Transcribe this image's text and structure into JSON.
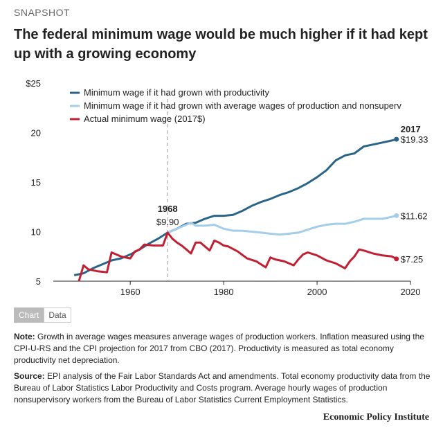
{
  "header": {
    "kicker": "SNAPSHOT",
    "title": "The federal minimum wage would be much higher if it had kept up with a growing economy"
  },
  "tabs": {
    "chart_label": "Chart",
    "data_label": "Data"
  },
  "notes": {
    "note_label": "Note:",
    "note_text": " Growth in average wages measures anverage wages of production workers. Inflation measured using the CPI-U-RS and the CPI projection for 2017 from CBO (2017). Productivity is measured as total economy productivity net depreciation.",
    "source_label": "Source:",
    "source_text": " EPI analysis of the Fair Labor Standards Act and amendments. Total economy productivity data from the Bureau of Labor Statistics Labor Productivity and Costs program. Average hourly wages of production nonsupervisory workers from the Bureau of Labor Statistics Current Employment Statistics."
  },
  "brand": "Economic Policy Institute",
  "chart_data": {
    "type": "line",
    "title": "The federal minimum wage would be much higher if it had kept up with a growing economy",
    "xlim": [
      1945,
      2020
    ],
    "ylim": [
      5,
      25
    ],
    "xticks": [
      1960,
      1980,
      2000,
      2020
    ],
    "yticks": [
      {
        "value": 5,
        "label": "5"
      },
      {
        "value": 10,
        "label": "10"
      },
      {
        "value": 15,
        "label": "15"
      },
      {
        "value": 20,
        "label": "20"
      },
      {
        "value": 25,
        "label": "$25"
      }
    ],
    "grid": false,
    "legend_position": "top-left",
    "reference_line": {
      "x": 1968,
      "label_year": "1968",
      "label_value": "$9.90"
    },
    "end_label_year": "2017",
    "series": [
      {
        "name": "Minimum wage if it had grown with productivity",
        "color": "#2a6587",
        "end_label": "$19.33",
        "x": [
          1948,
          1950,
          1952,
          1954,
          1956,
          1958,
          1960,
          1962,
          1964,
          1966,
          1968,
          1970,
          1972,
          1974,
          1976,
          1978,
          1980,
          1982,
          1984,
          1986,
          1988,
          1990,
          1992,
          1994,
          1996,
          1998,
          2000,
          2002,
          2004,
          2006,
          2008,
          2010,
          2012,
          2014,
          2016,
          2017
        ],
        "y": [
          5.6,
          5.8,
          6.3,
          6.7,
          7.1,
          7.3,
          7.7,
          8.2,
          8.8,
          9.3,
          9.9,
          10.3,
          10.8,
          10.9,
          11.3,
          11.6,
          11.6,
          11.7,
          12.1,
          12.6,
          13.0,
          13.3,
          13.7,
          14.0,
          14.4,
          14.9,
          15.5,
          16.2,
          17.2,
          17.7,
          17.9,
          18.6,
          18.8,
          19.0,
          19.2,
          19.33
        ]
      },
      {
        "name": "Minimum wage if it had grown with average wages of production and nonsuperv",
        "color": "#a3cde9",
        "end_label": "$11.62",
        "x": [
          1968,
          1970,
          1972,
          1973,
          1974,
          1976,
          1978,
          1980,
          1982,
          1984,
          1986,
          1988,
          1990,
          1992,
          1994,
          1996,
          1998,
          2000,
          2002,
          2004,
          2006,
          2008,
          2010,
          2012,
          2014,
          2016,
          2017
        ],
        "y": [
          9.9,
          10.3,
          10.7,
          10.9,
          10.6,
          10.6,
          10.7,
          10.3,
          10.1,
          10.1,
          10.0,
          9.9,
          9.8,
          9.7,
          9.8,
          9.9,
          10.2,
          10.5,
          10.7,
          10.8,
          10.8,
          11.0,
          11.3,
          11.3,
          11.3,
          11.5,
          11.62
        ]
      },
      {
        "name": "Actual minimum wage (2017$)",
        "color": "#c11f32",
        "end_label": "$7.25",
        "x": [
          1949,
          1950,
          1951,
          1953,
          1955,
          1956,
          1958,
          1960,
          1961,
          1962,
          1963,
          1965,
          1967,
          1968,
          1969,
          1970,
          1971,
          1972,
          1973,
          1974,
          1975,
          1976,
          1977,
          1978,
          1979,
          1980,
          1981,
          1983,
          1985,
          1987,
          1989,
          1990,
          1991,
          1993,
          1995,
          1996,
          1997,
          1998,
          2000,
          2002,
          2004,
          2006,
          2007,
          2008,
          2009,
          2010,
          2012,
          2014,
          2016,
          2017
        ],
        "y": [
          5.0,
          6.6,
          6.2,
          6.0,
          5.9,
          7.9,
          7.5,
          7.3,
          8.0,
          8.2,
          8.7,
          8.6,
          8.6,
          9.9,
          9.3,
          8.9,
          8.6,
          8.2,
          7.8,
          8.9,
          8.9,
          8.5,
          8.1,
          9.1,
          8.9,
          8.6,
          8.5,
          8.0,
          7.3,
          7.0,
          6.4,
          7.4,
          7.2,
          7.0,
          6.6,
          7.2,
          7.7,
          7.9,
          7.6,
          7.1,
          6.8,
          6.3,
          7.0,
          7.5,
          8.2,
          8.1,
          7.8,
          7.6,
          7.5,
          7.25
        ]
      }
    ]
  }
}
